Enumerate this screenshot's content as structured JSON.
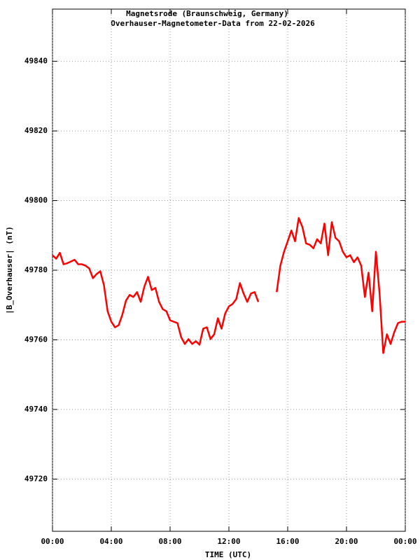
{
  "chart_data": {
    "type": "line",
    "title": "Magnetsrode (Braunschweig, Germany)",
    "subtitle": "Overhauser-Magnetometer-Data from 22-02-2026",
    "x_label": "TIME (UTC)",
    "y_label": "|B_Overhauser| (nT)",
    "color": "#ff0000",
    "grid": true,
    "xlim": [
      0,
      24
    ],
    "ylim": [
      49705,
      49855
    ],
    "xticks": [
      {
        "value": 0,
        "label": "00:00"
      },
      {
        "value": 4,
        "label": "04:00"
      },
      {
        "value": 8,
        "label": "08:00"
      },
      {
        "value": 12,
        "label": "12:00"
      },
      {
        "value": 16,
        "label": "16:00"
      },
      {
        "value": 20,
        "label": "20:00"
      },
      {
        "value": 24,
        "label": "00:00"
      }
    ],
    "yticks": [
      49720,
      49740,
      49760,
      49780,
      49800,
      49820,
      49840
    ],
    "x": [
      0,
      0.25,
      0.5,
      0.75,
      1,
      1.25,
      1.5,
      1.75,
      2,
      2.25,
      2.5,
      2.75,
      3,
      3.25,
      3.5,
      3.75,
      4,
      4.25,
      4.5,
      4.75,
      5,
      5.25,
      5.5,
      5.75,
      6,
      6.25,
      6.5,
      6.75,
      7,
      7.25,
      7.5,
      7.75,
      8,
      8.25,
      8.5,
      8.75,
      9,
      9.25,
      9.5,
      9.75,
      10,
      10.25,
      10.5,
      10.75,
      11,
      11.25,
      11.5,
      11.75,
      12,
      12.25,
      12.5,
      12.75,
      13,
      13.25,
      13.5,
      13.75,
      14,
      14.25,
      14.5,
      14.75,
      15,
      15.25,
      15.5,
      15.75,
      16,
      16.25,
      16.5,
      16.75,
      17,
      17.25,
      17.5,
      17.75,
      18,
      18.25,
      18.5,
      18.75,
      19,
      19.25,
      19.5,
      19.75,
      20,
      20.25,
      20.5,
      20.75,
      21,
      21.25,
      21.5,
      21.75,
      22,
      22.25,
      22.5,
      22.75,
      23,
      23.25,
      23.5,
      23.75,
      24
    ],
    "values": [
      49784.3,
      49783.3,
      49785,
      49781.7,
      49782,
      49782.5,
      49783,
      49781.7,
      49781.7,
      49781.3,
      49780.5,
      49777.7,
      49778.9,
      49779.7,
      49775.7,
      49768.2,
      49765.2,
      49763.6,
      49764.2,
      49767.2,
      49771.3,
      49772.9,
      49772.3,
      49773.7,
      49770.9,
      49775.3,
      49778.1,
      49774.3,
      49774.9,
      49770.9,
      49768.8,
      49768.2,
      49765.6,
      49765.2,
      49764.8,
      49760.8,
      49758.8,
      49760.2,
      49758.8,
      49759.6,
      49758.6,
      49763.2,
      49763.6,
      49760.2,
      49761.6,
      49766.2,
      49763.2,
      49767.6,
      49769.6,
      49770.3,
      49771.7,
      49776.3,
      49773.3,
      49770.9,
      49773.3,
      49773.7,
      49770.9,
      null,
      null,
      null,
      null,
      49773.7,
      49781.3,
      49785.3,
      49788.3,
      49791.4,
      49788.3,
      49795,
      49792.4,
      49787.7,
      49787.3,
      49786.3,
      49788.9,
      49787.7,
      49793.4,
      49784.3,
      49793.8,
      49789.3,
      49788.3,
      49785.3,
      49783.7,
      49784.3,
      49782.3,
      49783.7,
      49781.3,
      49772.3,
      49779.3,
      49768.2,
      49785.3,
      49773.3,
      49756.2,
      49761.6,
      49758.8,
      49762.2,
      49764.8,
      49765.2,
      49765.2
    ]
  }
}
